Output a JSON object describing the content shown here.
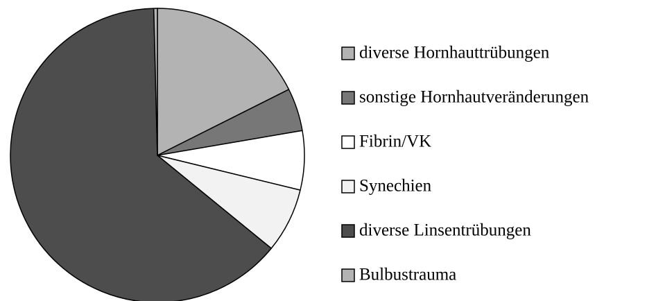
{
  "chart_data": {
    "type": "pie",
    "categories": [
      "diverse Hornhauttrübungen",
      "sonstige Hornhautveränderungen",
      "Fibrin/VK",
      "Synechien",
      "diverse Linsentrübungen",
      "Bulbustrauma"
    ],
    "values": [
      17.6,
      4.7,
      6.5,
      7.1,
      63.7,
      0.4
    ],
    "colors": [
      "#b3b3b3",
      "#777777",
      "#ffffff",
      "#f2f2f2",
      "#4d4d4d",
      "#b3b3b3"
    ],
    "legend": "right"
  }
}
